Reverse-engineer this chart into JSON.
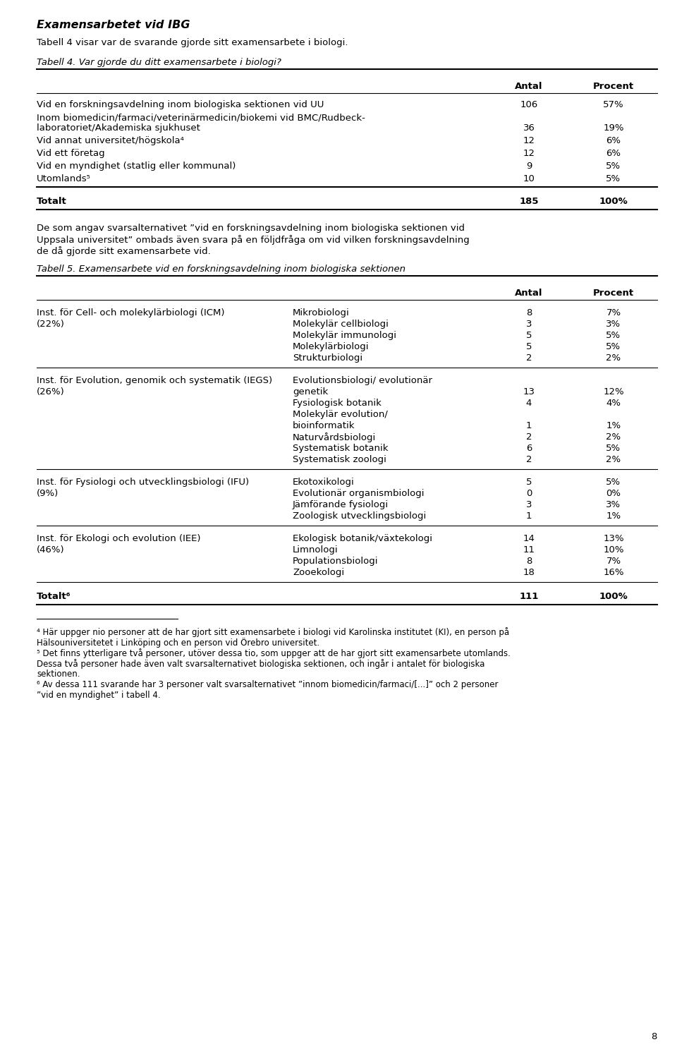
{
  "page_number": "8",
  "main_title": "Examensarbetet vid IBG",
  "intro_text1": "Tabell 4 visar var de svarande gjorde sitt examensarbete i biologi.",
  "table4_caption": "Tabell 4. Var gjorde du ditt examensarbete i biologi?",
  "table4_rows": [
    [
      "Vid en forskningsavdelning inom biologiska sektionen vid UU",
      "106",
      "57%"
    ],
    [
      "Inom biomedicin/farmaci/veterinärmedicin/biokemi vid BMC/Rudbeck-\nlaboratoriet/Akademiska sjukhuset",
      "36",
      "19%"
    ],
    [
      "Vid annat universitet/högskola⁴",
      "12",
      "6%"
    ],
    [
      "Vid ett företag",
      "12",
      "6%"
    ],
    [
      "Vid en myndighet (statlig eller kommunal)",
      "9",
      "5%"
    ],
    [
      "Utomlands⁵",
      "10",
      "5%"
    ],
    [
      "Totalt",
      "185",
      "100%"
    ]
  ],
  "mid_lines": [
    "De som angav svarsalternativet ”vid en forskningsavdelning inom biologiska sektionen vid",
    "Uppsala universitet” ombads även svara på en följdfråga om vid vilken forskningsavdelning",
    "de då gjorde sitt examensarbete vid."
  ],
  "table5_caption": "Tabell 5. Examensarbete vid en forskningsavdelning inom biologiska sektionen",
  "table5_sections": [
    {
      "inst": "Inst. för Cell- och molekylärbiologi (ICM)",
      "inst2": "(22%)",
      "rows": [
        [
          "Mikrobiologi",
          "8",
          "7%"
        ],
        [
          "Molekylär cellbiologi",
          "3",
          "3%"
        ],
        [
          "Molekylär immunologi",
          "5",
          "5%"
        ],
        [
          "Molekylärbiologi",
          "5",
          "5%"
        ],
        [
          "Strukturbiologi",
          "2",
          "2%"
        ]
      ]
    },
    {
      "inst": "Inst. för Evolution, genomik och systematik (IEGS)",
      "inst2": "(26%)",
      "rows": [
        [
          "Evolutionsbiologi/ evolutionär",
          "",
          ""
        ],
        [
          "genetik",
          "13",
          "12%"
        ],
        [
          "Fysiologisk botanik",
          "4",
          "4%"
        ],
        [
          "Molekylär evolution/",
          "",
          ""
        ],
        [
          "bioinformatik",
          "1",
          "1%"
        ],
        [
          "Naturvårdsbiologi",
          "2",
          "2%"
        ],
        [
          "Systematisk botanik",
          "6",
          "5%"
        ],
        [
          "Systematisk zoologi",
          "2",
          "2%"
        ]
      ]
    },
    {
      "inst": "Inst. för Fysiologi och utvecklingsbiologi (IFU)",
      "inst2": "(9%)",
      "rows": [
        [
          "Ekotoxikologi",
          "5",
          "5%"
        ],
        [
          "Evolutionär organismbiologi",
          "0",
          "0%"
        ],
        [
          "Jämförande fysiologi",
          "3",
          "3%"
        ],
        [
          "Zoologisk utvecklingsbiologi",
          "1",
          "1%"
        ]
      ]
    },
    {
      "inst": "Inst. för Ekologi och evolution (IEE)",
      "inst2": "(46%)",
      "rows": [
        [
          "Ekologisk botanik/växtekologi",
          "14",
          "13%"
        ],
        [
          "Limnologi",
          "11",
          "10%"
        ],
        [
          "Populationsbiologi",
          "8",
          "7%"
        ],
        [
          "Zooekologi",
          "18",
          "16%"
        ]
      ]
    }
  ],
  "table5_total_label": "Totalt⁶",
  "table5_total_antal": "111",
  "table5_total_procent": "100%",
  "footnotes": [
    "⁴ Här uppger nio personer att de har gjort sitt examensarbete i biologi vid Karolinska institutet (KI), en person på",
    "Hälsouniversitetet i Linköping och en person vid Örebro universitet.",
    "⁵ Det finns ytterligare två personer, utöver dessa tio, som uppger att de har gjort sitt examensarbete utomlands.",
    "Dessa två personer hade även valt svarsalternativet biologiska sektionen, och ingår i antalet för biologiska",
    "sektionen.",
    "⁶ Av dessa 111 svarande har 3 personer valt svarsalternativet ”innom biomedicin/farmaci/[...]” och 2 personer",
    "”vid en myndighet” i tabell 4."
  ],
  "bg_color": "#ffffff",
  "text_color": "#000000"
}
